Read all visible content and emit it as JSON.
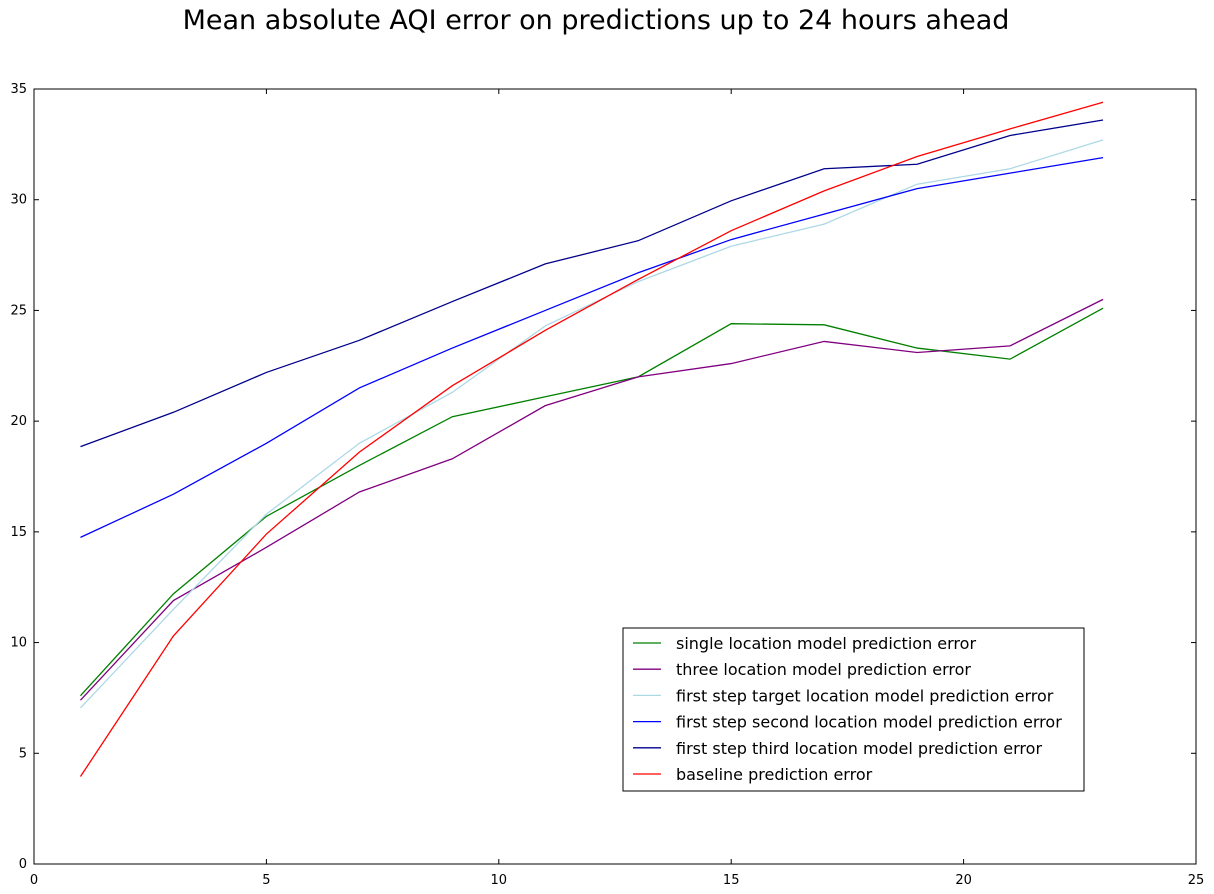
{
  "chart_data": {
    "type": "line",
    "title": "Mean absolute AQI error on predictions up to 24 hours ahead",
    "xlabel": "",
    "ylabel": "",
    "xlim": [
      0,
      25
    ],
    "ylim": [
      0,
      35
    ],
    "xticks": [
      0,
      5,
      10,
      15,
      20,
      25
    ],
    "yticks": [
      0,
      5,
      10,
      15,
      20,
      25,
      30,
      35
    ],
    "grid": false,
    "legend_position": "lower-right",
    "x": [
      1,
      3,
      5,
      7,
      9,
      11,
      13,
      15,
      17,
      19,
      21,
      23
    ],
    "series": [
      {
        "name": "single location model prediction error",
        "color": "#008000",
        "values": [
          7.6,
          12.2,
          15.7,
          18.0,
          20.2,
          21.1,
          22.0,
          24.4,
          24.35,
          23.3,
          22.8,
          25.1
        ]
      },
      {
        "name": "three location model prediction error",
        "color": "#800080",
        "values": [
          7.4,
          11.9,
          14.3,
          16.8,
          18.3,
          20.7,
          22.0,
          22.6,
          23.6,
          23.1,
          23.4,
          25.5
        ]
      },
      {
        "name": "first step target location model prediction error",
        "color": "#add8e6",
        "values": [
          7.05,
          11.5,
          15.8,
          19.0,
          21.3,
          24.3,
          26.3,
          27.9,
          28.9,
          30.7,
          31.4,
          32.7
        ]
      },
      {
        "name": "first step second location model prediction error",
        "color": "#0000ff",
        "values": [
          14.75,
          16.7,
          19.0,
          21.5,
          23.3,
          25.0,
          26.7,
          28.2,
          29.35,
          30.5,
          31.2,
          31.9
        ]
      },
      {
        "name": "first step third location model prediction error",
        "color": "#00008b",
        "values": [
          18.85,
          20.4,
          22.2,
          23.65,
          25.4,
          27.1,
          28.15,
          29.95,
          31.4,
          31.6,
          32.9,
          33.6
        ]
      },
      {
        "name": "baseline prediction error",
        "color": "#ff0000",
        "values": [
          3.95,
          10.3,
          14.9,
          18.6,
          21.6,
          24.1,
          26.4,
          28.6,
          30.4,
          31.95,
          33.2,
          34.4
        ]
      }
    ]
  }
}
